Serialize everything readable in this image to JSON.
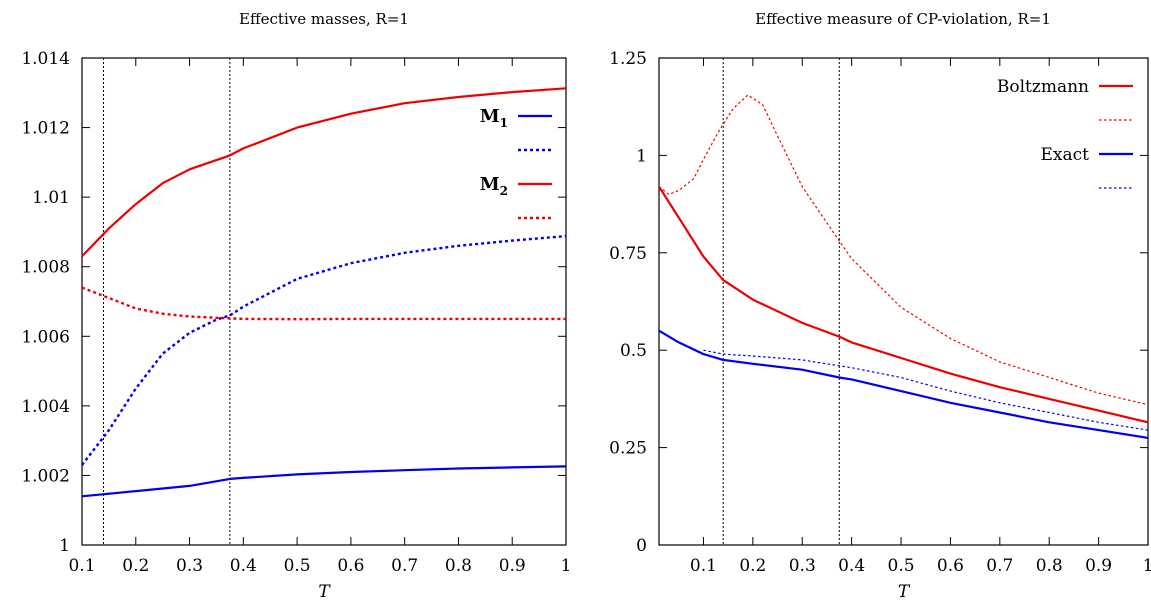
{
  "chart_data": [
    {
      "type": "line",
      "title": "Effective masses, R=1",
      "xlabel": "T",
      "ylabel": "",
      "xlim": [
        0.1,
        1
      ],
      "ylim": [
        1,
        1.014
      ],
      "xticks": [
        "0.1",
        "0.2",
        "0.3",
        "0.4",
        "0.5",
        "0.6",
        "0.7",
        "0.8",
        "0.9",
        "1"
      ],
      "xtick_values": [
        0.1,
        0.2,
        0.3,
        0.4,
        0.5,
        0.6,
        0.7,
        0.8,
        0.9,
        1
      ],
      "yticks": [
        "1",
        "1.002",
        "1.004",
        "1.006",
        "1.008",
        "1.01",
        "1.012",
        "1.014"
      ],
      "ytick_values": [
        1,
        1.002,
        1.004,
        1.006,
        1.008,
        1.01,
        1.012,
        1.014
      ],
      "vlines": [
        0.14,
        0.375
      ],
      "legend_position": "top-right",
      "series": [
        {
          "name": "M",
          "subscript": "1",
          "color": "#0000ee",
          "dash": "solid",
          "x": [
            0.1,
            0.2,
            0.3,
            0.375,
            0.4,
            0.5,
            0.6,
            0.7,
            0.8,
            0.9,
            1.0
          ],
          "y": [
            1.0014,
            1.00155,
            1.0017,
            1.0019,
            1.00193,
            1.00203,
            1.0021,
            1.00215,
            1.0022,
            1.00223,
            1.00226
          ]
        },
        {
          "name": "",
          "color": "#0000ee",
          "dash": "dotted",
          "x": [
            0.1,
            0.15,
            0.2,
            0.25,
            0.3,
            0.35,
            0.375,
            0.4,
            0.5,
            0.6,
            0.7,
            0.8,
            0.9,
            1.0
          ],
          "y": [
            1.0023,
            1.0033,
            1.0045,
            1.0055,
            1.0061,
            1.00648,
            1.0066,
            1.00685,
            1.00765,
            1.0081,
            1.0084,
            1.0086,
            1.00875,
            1.00888
          ]
        },
        {
          "name": "M",
          "subscript": "2",
          "color": "#ee0000",
          "dash": "solid",
          "x": [
            0.1,
            0.15,
            0.2,
            0.25,
            0.3,
            0.375,
            0.4,
            0.5,
            0.6,
            0.7,
            0.8,
            0.9,
            1.0
          ],
          "y": [
            1.0083,
            1.0091,
            1.0098,
            1.0104,
            1.0108,
            1.0112,
            1.0114,
            1.012,
            1.0124,
            1.0127,
            1.01288,
            1.01302,
            1.01313
          ]
        },
        {
          "name": "",
          "color": "#ee0000",
          "dash": "dotted",
          "x": [
            0.1,
            0.15,
            0.2,
            0.25,
            0.3,
            0.35,
            0.4,
            0.5,
            0.6,
            0.7,
            0.8,
            0.9,
            1.0
          ],
          "y": [
            1.0074,
            1.0071,
            1.0068,
            1.00665,
            1.00657,
            1.00653,
            1.0065,
            1.00649,
            1.0065,
            1.0065,
            1.0065,
            1.0065,
            1.0065
          ]
        }
      ]
    },
    {
      "type": "line",
      "title": "Effective measure of CP-violation, R=1",
      "xlabel": "T",
      "ylabel": "",
      "xlim": [
        0.01,
        1
      ],
      "ylim": [
        0,
        1.25
      ],
      "xticks": [
        "0.1",
        "0.2",
        "0.3",
        "0.4",
        "0.5",
        "0.6",
        "0.7",
        "0.8",
        "0.9",
        "1"
      ],
      "xtick_values": [
        0.1,
        0.2,
        0.3,
        0.4,
        0.5,
        0.6,
        0.7,
        0.8,
        0.9,
        1
      ],
      "yticks": [
        "0",
        "0.25",
        "0.5",
        "0.75",
        "1",
        "1.25"
      ],
      "ytick_values": [
        0,
        0.25,
        0.5,
        0.75,
        1,
        1.25
      ],
      "vlines": [
        0.14,
        0.375
      ],
      "legend_position": "top-right",
      "series": [
        {
          "name": "Boltzmann",
          "color": "#ee0000",
          "dash": "solid",
          "x": [
            0.01,
            0.05,
            0.1,
            0.14,
            0.2,
            0.3,
            0.375,
            0.4,
            0.5,
            0.6,
            0.7,
            0.8,
            0.9,
            1.0
          ],
          "y": [
            0.92,
            0.84,
            0.74,
            0.68,
            0.63,
            0.57,
            0.535,
            0.52,
            0.48,
            0.44,
            0.405,
            0.375,
            0.345,
            0.315
          ]
        },
        {
          "name": "",
          "color": "#ee0000",
          "dash": "dotted",
          "x": [
            0.01,
            0.03,
            0.05,
            0.08,
            0.1,
            0.13,
            0.16,
            0.19,
            0.22,
            0.25,
            0.3,
            0.375,
            0.4,
            0.5,
            0.6,
            0.7,
            0.8,
            0.9,
            1.0
          ],
          "y": [
            0.92,
            0.9,
            0.91,
            0.94,
            0.99,
            1.06,
            1.12,
            1.155,
            1.13,
            1.05,
            0.92,
            0.78,
            0.735,
            0.61,
            0.53,
            0.47,
            0.43,
            0.39,
            0.36
          ]
        },
        {
          "name": "Exact",
          "color": "#0000ee",
          "dash": "solid",
          "x": [
            0.01,
            0.05,
            0.1,
            0.14,
            0.2,
            0.3,
            0.375,
            0.4,
            0.5,
            0.6,
            0.7,
            0.8,
            0.9,
            1.0
          ],
          "y": [
            0.55,
            0.52,
            0.49,
            0.475,
            0.465,
            0.45,
            0.43,
            0.425,
            0.395,
            0.365,
            0.34,
            0.315,
            0.295,
            0.275
          ]
        },
        {
          "name": "",
          "color": "#0000ee",
          "dash": "dotted",
          "x": [
            0.1,
            0.14,
            0.2,
            0.3,
            0.375,
            0.4,
            0.5,
            0.6,
            0.7,
            0.8,
            0.9,
            1.0
          ],
          "y": [
            0.5,
            0.49,
            0.485,
            0.475,
            0.46,
            0.455,
            0.43,
            0.395,
            0.365,
            0.34,
            0.315,
            0.295
          ]
        }
      ]
    }
  ]
}
